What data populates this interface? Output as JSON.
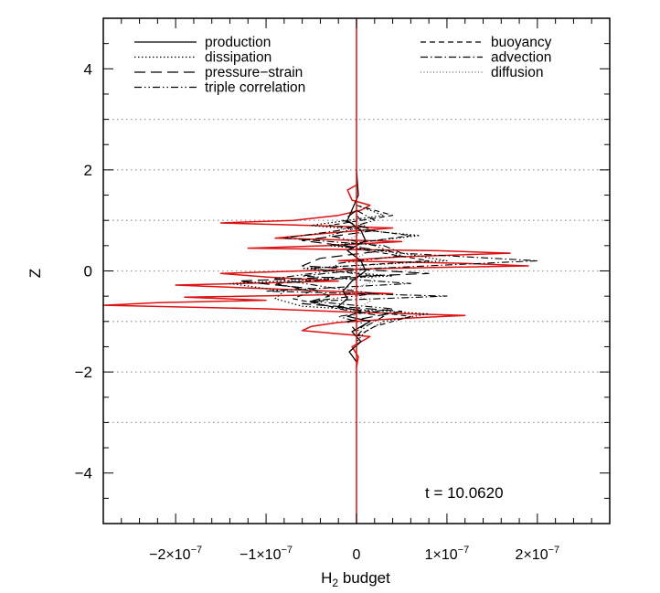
{
  "chart_data": {
    "type": "line",
    "xlabel": "H",
    "xlabel_sub": "2",
    "xlabel_rest": " budget",
    "ylabel": "Z",
    "annotation": "t  =  10.0620",
    "xlim": [
      -2.8e-07,
      2.8e-07
    ],
    "ylim": [
      -5,
      5
    ],
    "x_ticks": [
      {
        "value": -2e-07,
        "mant": "−2×10",
        "exp": "−7"
      },
      {
        "value": -1e-07,
        "mant": "−1×10",
        "exp": "−7"
      },
      {
        "value": 0,
        "mant": "0",
        "exp": ""
      },
      {
        "value": 1e-07,
        "mant": "1×10",
        "exp": "−7"
      },
      {
        "value": 2e-07,
        "mant": "2×10",
        "exp": "−7"
      }
    ],
    "y_ticks": [
      {
        "value": 4,
        "label": "4"
      },
      {
        "value": 2,
        "label": "2"
      },
      {
        "value": 0,
        "label": "0"
      },
      {
        "value": -2,
        "label": "−2"
      },
      {
        "value": -4,
        "label": "−4"
      }
    ],
    "grid_y": [
      3,
      2,
      1,
      0,
      -1,
      -2,
      -3
    ],
    "legend": [
      {
        "name": "production",
        "dash": "solid"
      },
      {
        "name": "dissipation",
        "dash": "dot"
      },
      {
        "name": "pressure−strain",
        "dash": "longdash"
      },
      {
        "name": "triple correlation",
        "dash": "dashdotdot"
      },
      {
        "name": "buoyancy",
        "dash": "dash"
      },
      {
        "name": "advection",
        "dash": "dashdot"
      },
      {
        "name": "diffusion",
        "dash": "fine"
      }
    ],
    "colors": {
      "red": "#dd1111",
      "black": "#000000",
      "grid": "#999999"
    },
    "series": [
      {
        "name": "red",
        "color": "#dd1111",
        "width": 1.5,
        "dash": "solid",
        "z": [
          1.7,
          1.6,
          1.4,
          1.3,
          1.2,
          1.1,
          1.0,
          0.95,
          0.9,
          0.85,
          0.75,
          0.65,
          0.58,
          0.5,
          0.45,
          0.4,
          0.35,
          0.28,
          0.2,
          0.15,
          0.1,
          0.05,
          0.0,
          -0.05,
          -0.12,
          -0.2,
          -0.28,
          -0.35,
          -0.45,
          -0.52,
          -0.58,
          -0.63,
          -0.68,
          -0.75,
          -0.82,
          -0.88,
          -0.95,
          -1.02,
          -1.1,
          -1.18,
          -1.3,
          -1.5,
          -1.7,
          -1.9
        ],
        "x": [
          0,
          -1e-08,
          -5e-09,
          1.5e-08,
          5e-09,
          -2e-08,
          -7e-08,
          -1.5e-07,
          -5e-08,
          4e-08,
          -3e-08,
          -9e-08,
          5e-08,
          -3e-08,
          -1.2e-07,
          9e-08,
          1.7e-07,
          5e-08,
          -2e-08,
          1.2e-07,
          1.9e-07,
          3e-08,
          -6e-08,
          -1.5e-07,
          -1e-07,
          -2e-08,
          -2e-07,
          -1e-07,
          4e-08,
          -1.9e-07,
          -1e-07,
          -2.2e-07,
          -2.8e-07,
          -1e-07,
          0.0,
          1.2e-07,
          4e-08,
          -2e-08,
          -5e-08,
          -6e-08,
          1.5e-08,
          -5e-09,
          2e-09,
          0
        ]
      },
      {
        "name": "production",
        "color": "#000000",
        "width": 1.3,
        "dash": "solid",
        "z": [
          2.0,
          1.5,
          1.0,
          0.8,
          0.6,
          0.4,
          0.2,
          0.0,
          -0.2,
          -0.4,
          -0.55,
          -0.7,
          -0.8,
          -0.9,
          -1.0,
          -1.2,
          -1.4,
          -1.6,
          -1.8
        ],
        "x": [
          0,
          2e-09,
          -1e-08,
          5e-09,
          1e-08,
          -1e-08,
          5e-09,
          1e-08,
          -5e-09,
          -1.5e-08,
          -1e-08,
          -2e-08,
          5e-09,
          -1e-08,
          1.5e-08,
          -5e-09,
          5e-09,
          -8e-09,
          0
        ]
      },
      {
        "name": "dissipation",
        "color": "#000000",
        "width": 1.2,
        "dash": "dot",
        "z": [
          1.3,
          1.1,
          0.9,
          0.7,
          0.5,
          0.35,
          0.2,
          0.05,
          -0.1,
          -0.25,
          -0.4,
          -0.55,
          -0.7,
          -0.85,
          -1.0,
          -1.2,
          -1.4
        ],
        "x": [
          0,
          3e-08,
          -5e-08,
          7e-08,
          -3e-08,
          5e-08,
          1e-07,
          -6e-08,
          4e-08,
          -1.4e-07,
          -8e-08,
          -9e-08,
          -6e-08,
          8e-08,
          3e-08,
          1e-08,
          0
        ]
      },
      {
        "name": "pressure−strain",
        "color": "#000000",
        "width": 1.2,
        "dash": "longdash",
        "z": [
          1.2,
          1.0,
          0.8,
          0.6,
          0.4,
          0.25,
          0.1,
          -0.05,
          -0.2,
          -0.35,
          -0.5,
          -0.65,
          -0.8,
          -1.0,
          -1.2
        ],
        "x": [
          0,
          -1.5e-08,
          2e-08,
          -6e-08,
          3e-08,
          -4e-08,
          -6e-08,
          8e-08,
          -1.3e-07,
          -5e-08,
          -3e-08,
          -6e-08,
          5e-08,
          -1e-08,
          0
        ]
      },
      {
        "name": "triple correlation",
        "color": "#000000",
        "width": 1.1,
        "dash": "dashdotdot",
        "z": [
          1.1,
          0.9,
          0.7,
          0.5,
          0.3,
          0.15,
          0.0,
          -0.15,
          -0.3,
          -0.45,
          -0.6,
          -0.75,
          -0.9,
          -1.05,
          -1.2
        ],
        "x": [
          0,
          1e-08,
          -3e-08,
          2e-08,
          5e-08,
          -2e-08,
          -3e-08,
          -9e-08,
          -4e-08,
          2e-08,
          -5e-08,
          4e-08,
          -2e-08,
          1e-08,
          0
        ]
      },
      {
        "name": "buoyancy",
        "color": "#000000",
        "width": 1.1,
        "dash": "dash",
        "z": [
          1.3,
          1.1,
          0.9,
          0.7,
          0.5,
          0.35,
          0.2,
          0.05,
          -0.1,
          -0.25,
          -0.4,
          -0.55,
          -0.7,
          -0.9,
          -1.1,
          -1.3
        ],
        "x": [
          0,
          4e-08,
          -3e-08,
          6e-08,
          -2e-08,
          3e-08,
          8e-08,
          -5e-08,
          2e-08,
          -9e-08,
          -5e-08,
          -7e-08,
          -3e-08,
          6e-08,
          2e-08,
          0
        ]
      },
      {
        "name": "advection",
        "color": "#000000",
        "width": 1.1,
        "dash": "dashdot",
        "z": [
          1.2,
          1.0,
          0.8,
          0.65,
          0.5,
          0.35,
          0.2,
          0.05,
          -0.1,
          -0.25,
          -0.4,
          -0.5,
          -0.6,
          -0.75,
          -0.9,
          -1.1,
          -1.3
        ],
        "x": [
          0,
          2e-08,
          -2e-08,
          -8e-08,
          3e-08,
          5e-08,
          2e-07,
          2e-08,
          -6e-08,
          6e-08,
          -1e-07,
          1e-07,
          -5e-08,
          -2e-08,
          3e-08,
          1e-08,
          0
        ]
      },
      {
        "name": "diffusion",
        "color": "#555555",
        "width": 1.0,
        "dash": "fine",
        "z": [
          1.0,
          0.8,
          0.6,
          0.4,
          0.2,
          0.0,
          -0.2,
          -0.4,
          -0.6,
          -0.8,
          -1.0
        ],
        "x": [
          0,
          1e-08,
          -1e-08,
          1.5e-08,
          -5e-09,
          1e-08,
          2e-08,
          -1e-08,
          1.5e-08,
          -5e-09,
          0
        ]
      }
    ]
  }
}
